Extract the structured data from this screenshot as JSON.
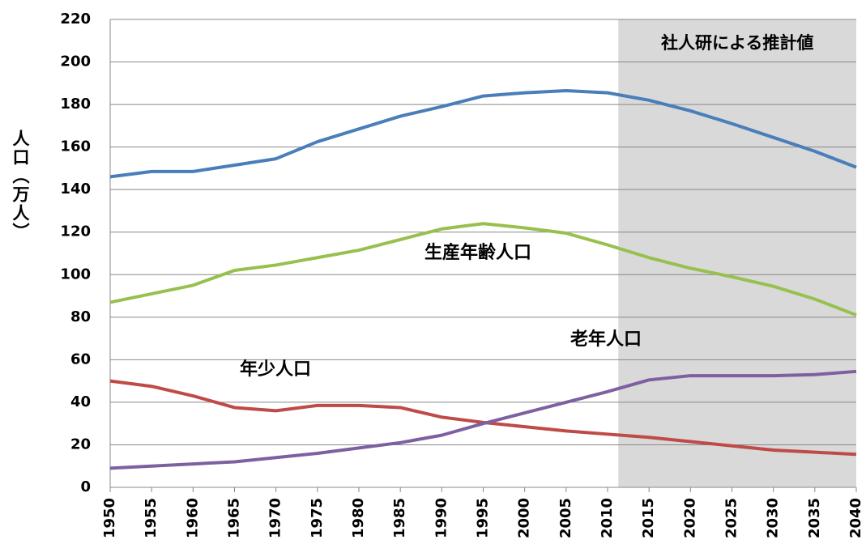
{
  "chart_data": {
    "type": "line",
    "x": [
      1950,
      1955,
      1960,
      1965,
      1970,
      1975,
      1980,
      1985,
      1990,
      1995,
      2000,
      2005,
      2010,
      2015,
      2020,
      2025,
      2030,
      2035,
      2040
    ],
    "series": [
      {
        "color": "#4a7ebb",
        "values": [
          146,
          148.5,
          148.5,
          151.5,
          154.5,
          162.5,
          168.5,
          174.5,
          179,
          184,
          185.5,
          186.5,
          185.5,
          182,
          177,
          171,
          164.5,
          158,
          150.5
        ]
      },
      {
        "name": "生産年齢人口",
        "color": "#98c04f",
        "values": [
          87,
          91,
          95,
          102,
          104.5,
          108,
          111.5,
          116.5,
          121.5,
          124,
          122,
          119.5,
          114,
          108,
          103,
          99,
          94.5,
          88.5,
          81
        ]
      },
      {
        "name": "年少人口",
        "color": "#be4b48",
        "values": [
          50,
          47.5,
          43,
          37.5,
          36,
          38.5,
          38.5,
          37.5,
          33,
          30.5,
          28.5,
          26.5,
          25,
          23.5,
          21.5,
          19.5,
          17.5,
          16.5,
          15.5
        ]
      },
      {
        "name": "老年人口",
        "color": "#7d60a0",
        "values": [
          9,
          10,
          11,
          12,
          14,
          16,
          18.5,
          21,
          24.5,
          30,
          35,
          40,
          45,
          50.5,
          52.5,
          52.5,
          52.5,
          53,
          54.5
        ]
      }
    ],
    "y_label": "人口（万人）",
    "shaded_region": {
      "xlim": [
        2011.3,
        2040
      ],
      "label": "社人研による推計値",
      "color": "#d9d9d9"
    },
    "xlim": [
      1950,
      2040
    ],
    "xticks": [
      1950,
      1955,
      1960,
      1965,
      1970,
      1975,
      1980,
      1985,
      1990,
      1995,
      2000,
      2005,
      2010,
      2015,
      2020,
      2025,
      2030,
      2035,
      2040
    ],
    "ylim": [
      0,
      220
    ],
    "yticks": [
      0,
      20,
      40,
      60,
      80,
      100,
      120,
      140,
      160,
      180,
      200,
      220
    ],
    "grid": true
  }
}
